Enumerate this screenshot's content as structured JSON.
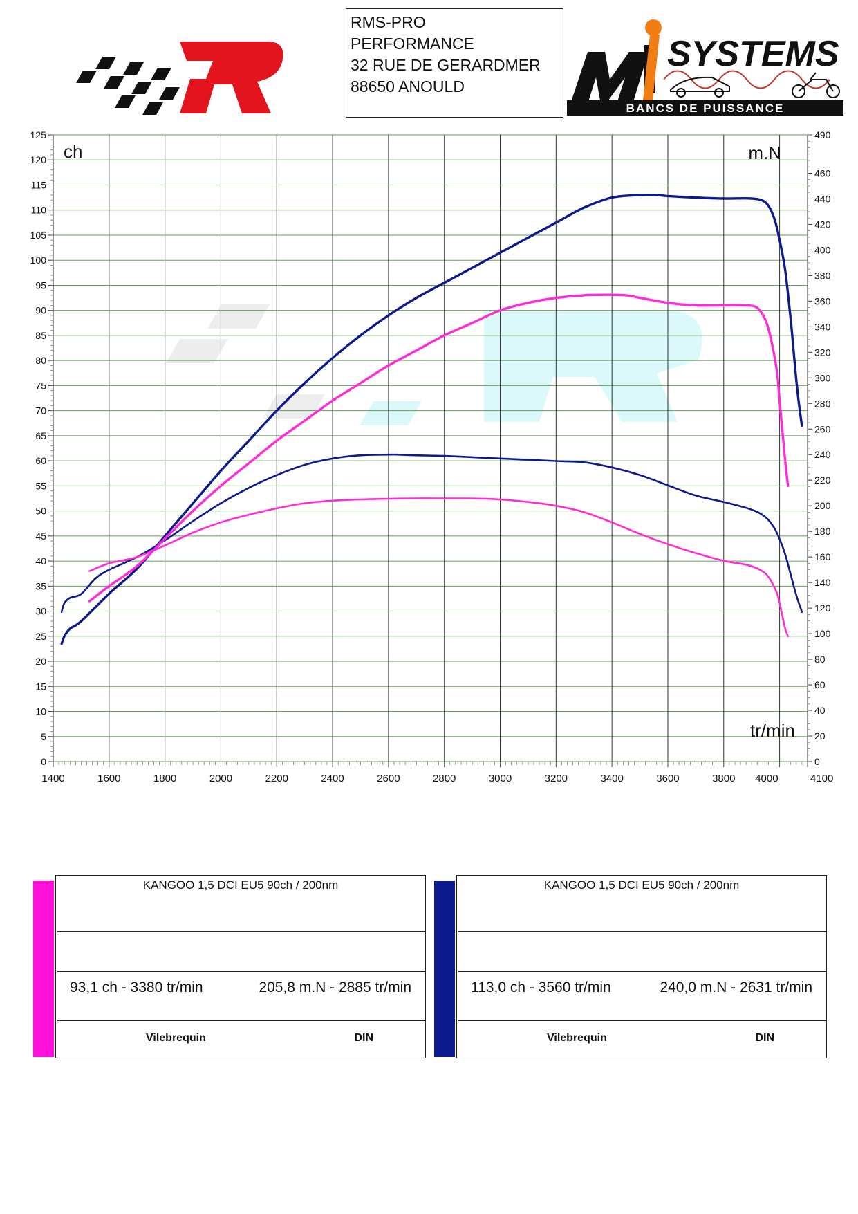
{
  "header": {
    "address_lines": [
      "RMS-PRO",
      "PERFORMANCE",
      "32 RUE DE GERARDMER",
      "88650 ANOULD"
    ],
    "left_logo": "rms-checkered-r-logo",
    "right_logo": {
      "icon": "misystems-logo",
      "brand_text": "SYSTEMS",
      "sub_text": "BANCS DE PUISSANCE"
    }
  },
  "colors": {
    "pink": "#ff2bd6",
    "navy": "#0d1a8e",
    "grid": "#6a9a5a",
    "vgrid": "#333333"
  },
  "chart_data": {
    "type": "line",
    "x_unit_label": "tr/min",
    "y_left_label": "ch",
    "y_right_label": "m.N",
    "xlim": [
      1400,
      4100
    ],
    "ylim_left": [
      0,
      125
    ],
    "ylim_right": [
      0,
      490
    ],
    "x_ticks": [
      1400,
      1600,
      1800,
      2000,
      2200,
      2400,
      2600,
      2800,
      3000,
      3200,
      3400,
      3600,
      3800,
      4000,
      4100
    ],
    "y_left_ticks": [
      0,
      5,
      10,
      15,
      20,
      25,
      30,
      35,
      40,
      45,
      50,
      55,
      60,
      65,
      70,
      75,
      80,
      85,
      90,
      95,
      100,
      105,
      110,
      115,
      120,
      125
    ],
    "y_right_ticks": [
      0,
      20,
      40,
      60,
      80,
      100,
      120,
      140,
      160,
      180,
      200,
      220,
      240,
      260,
      280,
      300,
      320,
      340,
      360,
      380,
      400,
      420,
      440,
      460,
      490
    ],
    "grid": true,
    "series": [
      {
        "name": "navy-power",
        "color": "#0d1a8e",
        "axis": "left",
        "x": [
          1430,
          1440,
          1460,
          1500,
          1600,
          1700,
          1800,
          1900,
          2000,
          2100,
          2200,
          2300,
          2400,
          2500,
          2600,
          2700,
          2800,
          2900,
          3000,
          3100,
          3200,
          3300,
          3400,
          3500,
          3560,
          3600,
          3700,
          3800,
          3900,
          3950,
          3980,
          4000,
          4020,
          4040,
          4050,
          4060,
          4070,
          4080
        ],
        "y": [
          23.5,
          25,
          26.5,
          28,
          33.5,
          38.5,
          45,
          51.5,
          58,
          64,
          70,
          75.5,
          80.5,
          85,
          89,
          92.5,
          95.5,
          98.5,
          101.5,
          104.5,
          107.5,
          110.5,
          112.5,
          113,
          113,
          112.8,
          112.5,
          112.3,
          112.3,
          111.5,
          108.5,
          104,
          98,
          88,
          82,
          76,
          71,
          67
        ]
      },
      {
        "name": "navy-torque",
        "color": "#0d1a8e",
        "axis": "right",
        "x": [
          1430,
          1440,
          1460,
          1500,
          1550,
          1600,
          1700,
          1800,
          1900,
          2000,
          2100,
          2200,
          2300,
          2400,
          2500,
          2600,
          2631,
          2700,
          2800,
          2900,
          3000,
          3100,
          3200,
          3300,
          3400,
          3500,
          3600,
          3700,
          3800,
          3900,
          3950,
          3980,
          4000,
          4020,
          4040,
          4060,
          4080
        ],
        "y": [
          117,
          124,
          128,
          131,
          143,
          150,
          160,
          173,
          188,
          202,
          214,
          224,
          232,
          237,
          239.5,
          240,
          240,
          239.5,
          239,
          238,
          237,
          236,
          235,
          234,
          230,
          224,
          216,
          208,
          203,
          197,
          191,
          183,
          174,
          162,
          146,
          130,
          117
        ]
      },
      {
        "name": "pink-power",
        "color": "#ff2bd6",
        "axis": "left",
        "x": [
          1530,
          1600,
          1700,
          1800,
          1900,
          2000,
          2100,
          2200,
          2300,
          2400,
          2500,
          2600,
          2700,
          2800,
          2900,
          3000,
          3100,
          3200,
          3300,
          3380,
          3450,
          3500,
          3600,
          3700,
          3800,
          3880,
          3920,
          3950,
          3970,
          3990,
          4000,
          4010,
          4020,
          4030
        ],
        "y": [
          32,
          35,
          39,
          44.5,
          50,
          55,
          59.5,
          64,
          68,
          72,
          75.5,
          79,
          82,
          85,
          87.5,
          90,
          91.5,
          92.5,
          93,
          93.1,
          93,
          92.5,
          91.5,
          91,
          91,
          91,
          90.5,
          88,
          84,
          78,
          72,
          66,
          60,
          55
        ]
      },
      {
        "name": "pink-torque",
        "color": "#ff2bd6",
        "axis": "right",
        "x": [
          1530,
          1600,
          1700,
          1800,
          1900,
          2000,
          2100,
          2200,
          2300,
          2400,
          2500,
          2600,
          2700,
          2800,
          2885,
          2950,
          3000,
          3100,
          3200,
          3300,
          3400,
          3500,
          3600,
          3700,
          3800,
          3880,
          3920,
          3950,
          3970,
          3990,
          4000,
          4010,
          4020,
          4030
        ],
        "y": [
          149,
          155,
          160,
          169,
          179,
          187,
          193,
          198,
          202,
          204,
          205,
          205.5,
          205.8,
          205.8,
          205.8,
          205.5,
          205,
          203,
          200,
          195,
          187,
          178,
          170,
          163,
          157,
          154,
          151,
          147,
          141,
          132,
          124,
          114,
          104,
          98
        ]
      }
    ]
  },
  "cards": [
    {
      "color": "#ff2bd6",
      "title": "KANGOO 1,5 DCI EU5 90ch / 200nm",
      "power": "93,1 ch - 3380 tr/min",
      "torque": "205,8 m.N - 2885 tr/min",
      "measure": "Vilebrequin",
      "norm": "DIN"
    },
    {
      "color": "#0d1a8e",
      "title": "KANGOO 1,5 DCI EU5 90ch / 200nm",
      "power": "113,0 ch - 3560 tr/min",
      "torque": "240,0 m.N - 2631 tr/min",
      "measure": "Vilebrequin",
      "norm": "DIN"
    }
  ]
}
